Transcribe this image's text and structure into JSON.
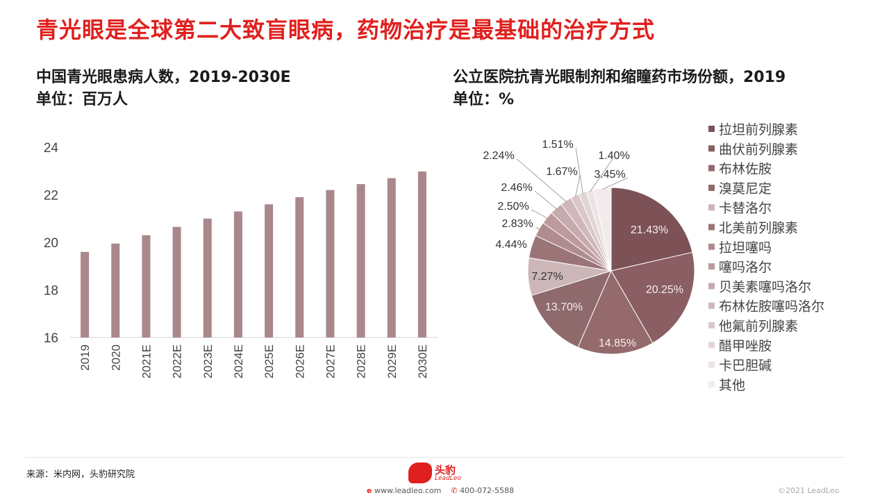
{
  "title": "青光眼是全球第二大致盲眼病，药物治疗是最基础的治疗方式",
  "left_chart": {
    "heading": "中国青光眼患病人数，2019-2030E",
    "unit": "单位：百万人"
  },
  "right_chart": {
    "heading": "公立医院抗青光眼制剂和缩瞳药市场份额，2019",
    "unit": "单位：%"
  },
  "chart_data": [
    {
      "type": "bar",
      "categories": [
        "2019",
        "2020",
        "2021E",
        "2022E",
        "2023E",
        "2024E",
        "2025E",
        "2026E",
        "2027E",
        "2028E",
        "2029E",
        "2030E"
      ],
      "values": [
        19.6,
        19.95,
        20.3,
        20.65,
        21.0,
        21.3,
        21.6,
        21.9,
        22.2,
        22.45,
        22.7,
        22.98
      ],
      "ylim": [
        16,
        24
      ],
      "yticks": [
        "16",
        "18",
        "20",
        "22",
        "24"
      ],
      "color": "#a9878a",
      "grid": false
    },
    {
      "type": "pie",
      "labels": [
        "拉坦前列腺素",
        "曲伏前列腺素",
        "布林佐胺",
        "溴莫尼定",
        "卡替洛尔",
        "北美前列腺素",
        "拉坦噻吗",
        "噻吗洛尔",
        "贝美素噻吗洛尔",
        "布林佐胺噻吗洛尔",
        "他氟前列腺素",
        "醋甲唑胺",
        "卡巴胆碱",
        "其他"
      ],
      "values": [
        21.43,
        20.25,
        14.85,
        13.7,
        7.27,
        4.44,
        2.83,
        2.5,
        2.46,
        2.24,
        1.67,
        1.51,
        1.4,
        3.45
      ],
      "value_labels": [
        "21.43%",
        "20.25%",
        "14.85%",
        "13.70%",
        "7.27%",
        "4.44%",
        "2.83%",
        "2.50%",
        "2.46%",
        "2.24%",
        "1.67%",
        "1.51%",
        "1.40%",
        "3.45%"
      ],
      "colors": [
        "#7c5257",
        "#8a5e62",
        "#946a6d",
        "#8e6a6d",
        "#ccb6b8",
        "#9a7477",
        "#b08c8f",
        "#bc9a9d",
        "#c6aaad",
        "#d0b8ba",
        "#d9c7c9",
        "#e2d4d5",
        "#ece3e4",
        "#f1ebec"
      ],
      "legend_position": "right"
    }
  ],
  "footer": {
    "source": "来源：米内网，头豹研究院",
    "logo_cn": "头豹",
    "logo_en": "LeadLeo",
    "website": "www.leadleo.com",
    "phone": "400-072-5588",
    "copyright": "©2021 LeadLeo"
  }
}
